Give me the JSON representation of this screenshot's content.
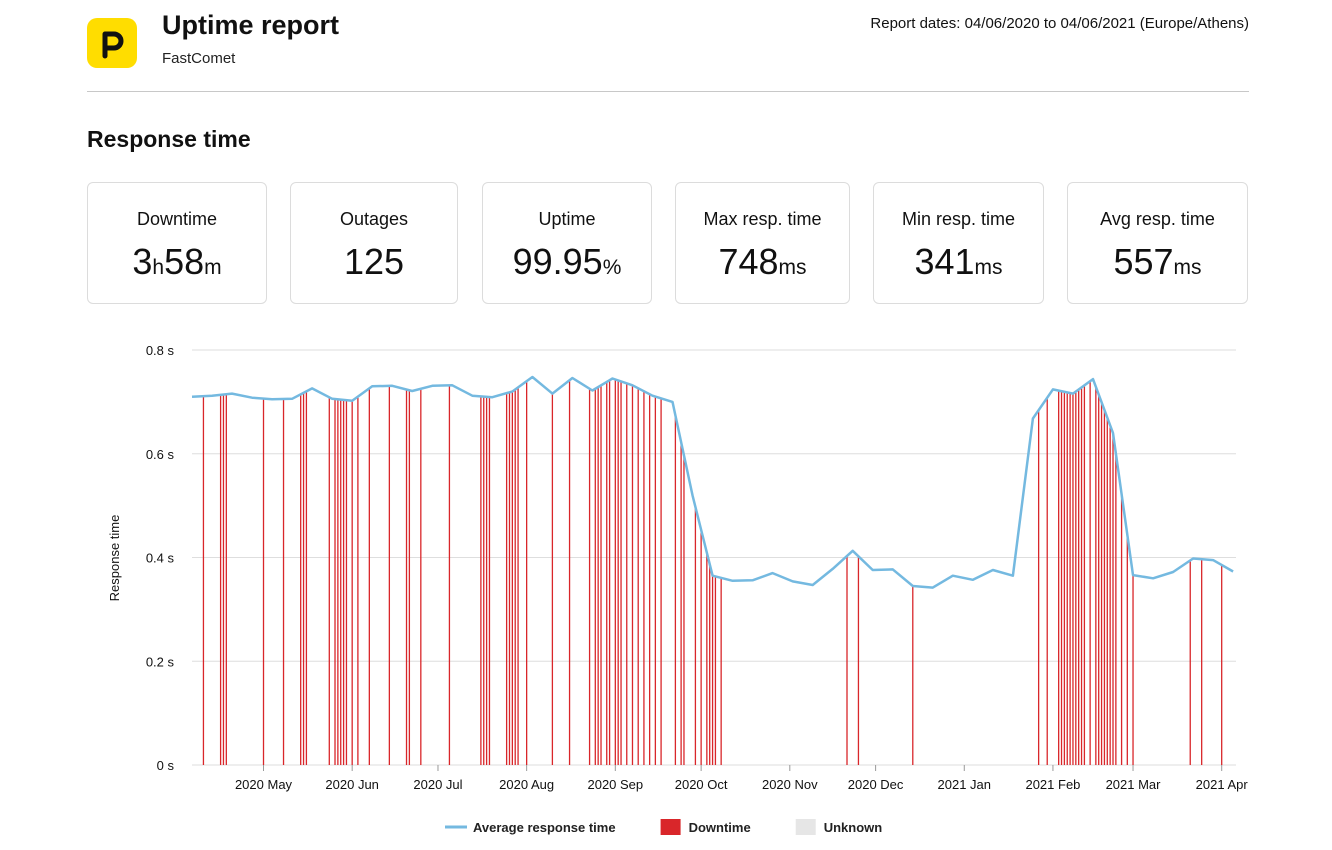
{
  "header": {
    "logo_icon": "pingdom-p-logo-icon",
    "logo_color": "#ffdd00",
    "title": "Uptime report",
    "subtitle": "FastComet",
    "report_dates": "Report dates: 04/06/2020 to 04/06/2021 (Europe/Athens)"
  },
  "section_title": "Response time",
  "stats": [
    {
      "label": "Downtime",
      "parts": [
        {
          "t": "3",
          "u": false
        },
        {
          "t": "h",
          "u": true
        },
        {
          "t": "58",
          "u": false
        },
        {
          "t": "m",
          "u": true
        }
      ]
    },
    {
      "label": "Outages",
      "parts": [
        {
          "t": "125",
          "u": false
        }
      ]
    },
    {
      "label": "Uptime",
      "parts": [
        {
          "t": "99.95",
          "u": false
        },
        {
          "t": "%",
          "u": true
        }
      ]
    },
    {
      "label": "Max resp. time",
      "parts": [
        {
          "t": "748",
          "u": false
        },
        {
          "t": "ms",
          "u": true
        }
      ]
    },
    {
      "label": "Min resp. time",
      "parts": [
        {
          "t": "341",
          "u": false
        },
        {
          "t": "ms",
          "u": true
        }
      ]
    },
    {
      "label": "Avg resp. time",
      "parts": [
        {
          "t": "557",
          "u": false
        },
        {
          "t": "ms",
          "u": true
        }
      ]
    }
  ],
  "chart_data": {
    "type": "line",
    "ylabel": "Response time",
    "ylim": [
      0,
      0.8
    ],
    "yticks": [
      0,
      0.2,
      0.4,
      0.6,
      0.8
    ],
    "ytick_labels": [
      "0 s",
      "0.2 s",
      "0.4 s",
      "0.6 s",
      "0.8 s"
    ],
    "grid": true,
    "x_domain": [
      "2020-04-06",
      "2021-04-06"
    ],
    "xticks": [
      {
        "date": "2020-05-01",
        "label": "2020 May"
      },
      {
        "date": "2020-06-01",
        "label": "2020 Jun"
      },
      {
        "date": "2020-07-01",
        "label": "2020 Jul"
      },
      {
        "date": "2020-08-01",
        "label": "2020 Aug"
      },
      {
        "date": "2020-09-01",
        "label": "2020 Sep"
      },
      {
        "date": "2020-10-01",
        "label": "2020 Oct"
      },
      {
        "date": "2020-11-01",
        "label": "2020 Nov"
      },
      {
        "date": "2020-12-01",
        "label": "2020 Dec"
      },
      {
        "date": "2021-01-01",
        "label": "2021 Jan"
      },
      {
        "date": "2021-02-01",
        "label": "2021 Feb"
      },
      {
        "date": "2021-03-01",
        "label": "2021 Mar"
      },
      {
        "date": "2021-04-01",
        "label": "2021 Apr"
      }
    ],
    "series": [
      {
        "name": "Average response time",
        "color": "#74b9e0",
        "points": [
          [
            "2020-04-06",
            0.71
          ],
          [
            "2020-04-13",
            0.712
          ],
          [
            "2020-04-20",
            0.716
          ],
          [
            "2020-04-27",
            0.708
          ],
          [
            "2020-05-04",
            0.705
          ],
          [
            "2020-05-11",
            0.706
          ],
          [
            "2020-05-18",
            0.726
          ],
          [
            "2020-05-25",
            0.706
          ],
          [
            "2020-06-01",
            0.702
          ],
          [
            "2020-06-08",
            0.73
          ],
          [
            "2020-06-15",
            0.731
          ],
          [
            "2020-06-22",
            0.721
          ],
          [
            "2020-06-29",
            0.731
          ],
          [
            "2020-07-06",
            0.732
          ],
          [
            "2020-07-13",
            0.712
          ],
          [
            "2020-07-20",
            0.709
          ],
          [
            "2020-07-27",
            0.72
          ],
          [
            "2020-08-03",
            0.748
          ],
          [
            "2020-08-10",
            0.716
          ],
          [
            "2020-08-17",
            0.746
          ],
          [
            "2020-08-24",
            0.722
          ],
          [
            "2020-08-31",
            0.745
          ],
          [
            "2020-09-07",
            0.732
          ],
          [
            "2020-09-14",
            0.712
          ],
          [
            "2020-09-21",
            0.7
          ],
          [
            "2020-09-28",
            0.52
          ],
          [
            "2020-10-05",
            0.365
          ],
          [
            "2020-10-12",
            0.355
          ],
          [
            "2020-10-19",
            0.356
          ],
          [
            "2020-10-26",
            0.37
          ],
          [
            "2020-11-02",
            0.354
          ],
          [
            "2020-11-09",
            0.347
          ],
          [
            "2020-11-16",
            0.378
          ],
          [
            "2020-11-23",
            0.413
          ],
          [
            "2020-11-30",
            0.376
          ],
          [
            "2020-12-07",
            0.377
          ],
          [
            "2020-12-14",
            0.345
          ],
          [
            "2020-12-21",
            0.342
          ],
          [
            "2020-12-28",
            0.365
          ],
          [
            "2021-01-04",
            0.357
          ],
          [
            "2021-01-11",
            0.376
          ],
          [
            "2021-01-18",
            0.365
          ],
          [
            "2021-01-25",
            0.668
          ],
          [
            "2021-02-01",
            0.724
          ],
          [
            "2021-02-08",
            0.716
          ],
          [
            "2021-02-15",
            0.744
          ],
          [
            "2021-02-22",
            0.64
          ],
          [
            "2021-03-01",
            0.366
          ],
          [
            "2021-03-08",
            0.36
          ],
          [
            "2021-03-15",
            0.372
          ],
          [
            "2021-03-22",
            0.398
          ],
          [
            "2021-03-29",
            0.395
          ],
          [
            "2021-04-05",
            0.373
          ]
        ]
      }
    ],
    "downtime_color": "#d9262a",
    "downtime_dates": [
      "2020-04-10",
      "2020-04-16",
      "2020-04-17",
      "2020-04-18",
      "2020-05-01",
      "2020-05-08",
      "2020-05-14",
      "2020-05-15",
      "2020-05-16",
      "2020-05-24",
      "2020-05-26",
      "2020-05-27",
      "2020-05-28",
      "2020-05-29",
      "2020-05-30",
      "2020-06-01",
      "2020-06-03",
      "2020-06-07",
      "2020-06-14",
      "2020-06-20",
      "2020-06-21",
      "2020-06-25",
      "2020-07-05",
      "2020-07-16",
      "2020-07-17",
      "2020-07-18",
      "2020-07-19",
      "2020-07-25",
      "2020-07-26",
      "2020-07-27",
      "2020-07-28",
      "2020-07-29",
      "2020-08-01",
      "2020-08-10",
      "2020-08-16",
      "2020-08-23",
      "2020-08-25",
      "2020-08-26",
      "2020-08-27",
      "2020-08-29",
      "2020-08-30",
      "2020-09-01",
      "2020-09-02",
      "2020-09-03",
      "2020-09-05",
      "2020-09-07",
      "2020-09-09",
      "2020-09-11",
      "2020-09-13",
      "2020-09-15",
      "2020-09-17",
      "2020-09-22",
      "2020-09-24",
      "2020-09-25",
      "2020-09-29",
      "2020-10-01",
      "2020-10-03",
      "2020-10-04",
      "2020-10-05",
      "2020-10-06",
      "2020-10-08",
      "2020-11-21",
      "2020-11-25",
      "2020-12-14",
      "2021-01-27",
      "2021-01-30",
      "2021-02-03",
      "2021-02-04",
      "2021-02-05",
      "2021-02-06",
      "2021-02-07",
      "2021-02-08",
      "2021-02-09",
      "2021-02-10",
      "2021-02-11",
      "2021-02-12",
      "2021-02-14",
      "2021-02-16",
      "2021-02-17",
      "2021-02-18",
      "2021-02-19",
      "2021-02-20",
      "2021-02-21",
      "2021-02-22",
      "2021-02-23",
      "2021-02-25",
      "2021-02-27",
      "2021-03-01",
      "2021-03-21",
      "2021-03-25",
      "2021-04-01"
    ],
    "legend": [
      {
        "label": "Average response time",
        "marker": "line",
        "color": "#74b9e0"
      },
      {
        "label": "Downtime",
        "marker": "square",
        "color": "#d9262a"
      },
      {
        "label": "Unknown",
        "marker": "square",
        "color": "#e6e6e6"
      }
    ],
    "legend_placement": "bottom-center"
  }
}
